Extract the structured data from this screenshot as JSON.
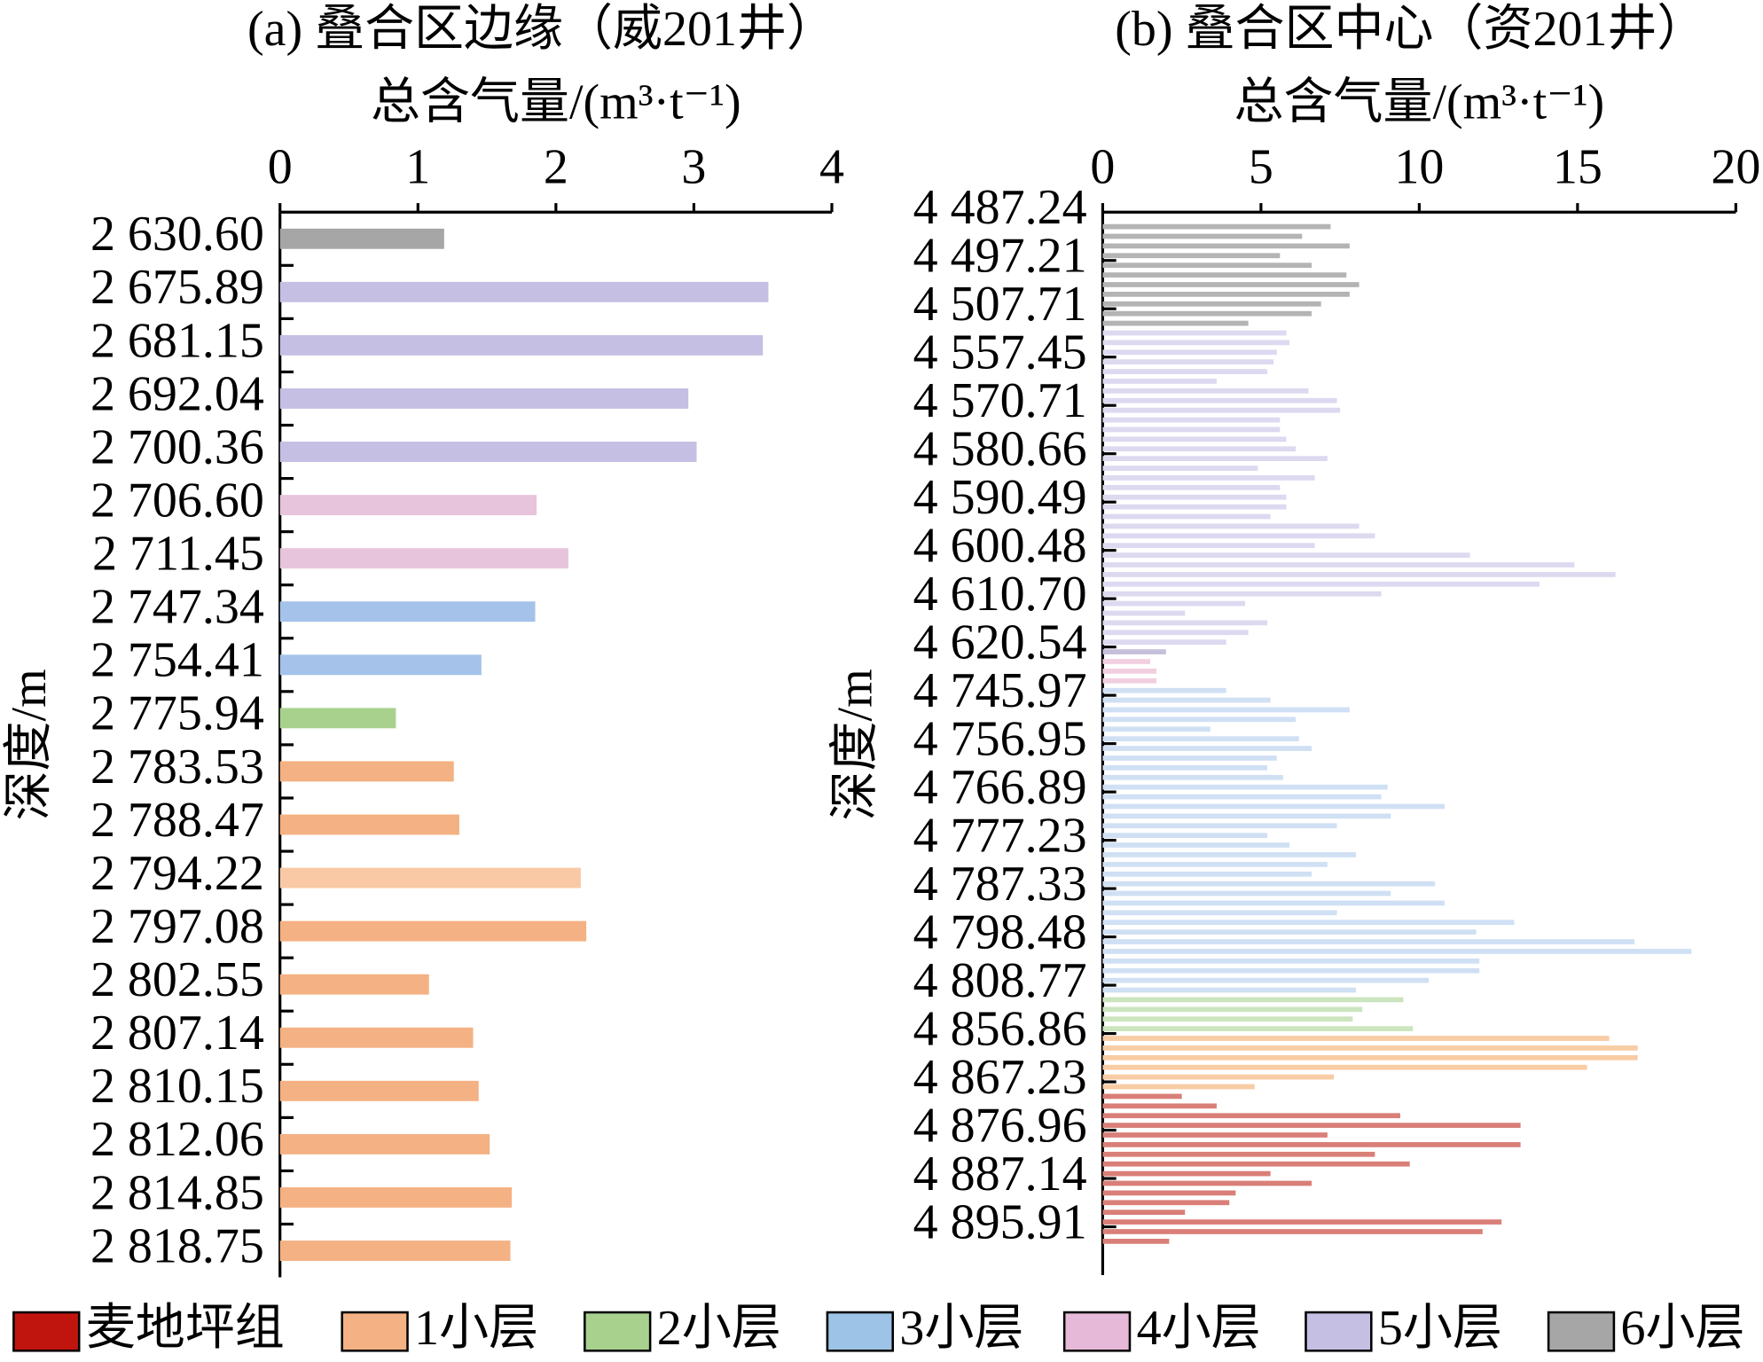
{
  "chart_data": [
    {
      "type": "hbar",
      "title": "(a) 叠合区边缘（威201井）",
      "x_label": "总含气量/(m³·t⁻¹)",
      "y_label": "深度/m",
      "categories": [
        "2 630.60",
        "2 675.89",
        "2 681.15",
        "2 692.04",
        "2 700.36",
        "2 706.60",
        "2 711.45",
        "2 747.34",
        "2 754.41",
        "2 775.94",
        "2 783.53",
        "2 788.47",
        "2 794.22",
        "2 797.08",
        "2 802.55",
        "2 807.14",
        "2 810.15",
        "2 812.06",
        "2 814.85",
        "2 818.75"
      ],
      "values": [
        1.19,
        3.54,
        3.5,
        2.96,
        3.02,
        1.86,
        2.09,
        1.85,
        1.46,
        0.84,
        1.26,
        1.3,
        2.18,
        2.22,
        1.08,
        1.4,
        1.44,
        1.52,
        1.68,
        1.67
      ],
      "colors": [
        "#a6a6a6",
        "#c5bfe3",
        "#c5bfe3",
        "#c5bfe3",
        "#c5bfe3",
        "#e8c3dc",
        "#e8c3dc",
        "#a4c2ea",
        "#a4c2ea",
        "#a9d18e",
        "#f4b183",
        "#f4b183",
        "#f8c9a4",
        "#f4b183",
        "#f4b183",
        "#f4b183",
        "#f4b183",
        "#f4b183",
        "#f4b183",
        "#f4b183"
      ],
      "xlim": [
        0,
        4
      ],
      "xticks": [
        0,
        1,
        2,
        3,
        4
      ]
    },
    {
      "type": "hbar",
      "title": "(b) 叠合区中心（资201井）",
      "x_label": "总含气量/(m³·t⁻¹)",
      "y_label": "深度/m",
      "categories": [
        "4 487.24",
        null,
        null,
        null,
        null,
        "4 497.21",
        null,
        null,
        null,
        null,
        "4 507.71",
        null,
        null,
        null,
        null,
        "4 557.45",
        null,
        null,
        null,
        null,
        "4 570.71",
        null,
        null,
        null,
        null,
        "4 580.66",
        null,
        null,
        null,
        null,
        "4 590.49",
        null,
        null,
        null,
        null,
        "4 600.48",
        null,
        null,
        null,
        null,
        "4 610.70",
        null,
        null,
        null,
        null,
        "4 620.54",
        null,
        null,
        null,
        null,
        "4 745.97",
        null,
        null,
        null,
        null,
        "4 756.95",
        null,
        null,
        null,
        null,
        "4 766.89",
        null,
        null,
        null,
        null,
        "4 777.23",
        null,
        null,
        null,
        null,
        "4 787.33",
        null,
        null,
        null,
        null,
        "4 798.48",
        null,
        null,
        null,
        null,
        "4 808.77",
        null,
        null,
        null,
        null,
        "4 856.86",
        null,
        null,
        null,
        null,
        "4 867.23",
        null,
        null,
        null,
        null,
        "4 876.96",
        null,
        null,
        null,
        null,
        "4 887.14",
        null,
        null,
        null,
        null,
        "4 895.91"
      ],
      "values": [
        7.2,
        6.3,
        7.8,
        5.6,
        6.6,
        7.7,
        8.1,
        7.8,
        6.9,
        6.6,
        4.6,
        5.8,
        5.9,
        5.5,
        5.4,
        5.2,
        3.6,
        6.5,
        7.4,
        7.5,
        5.6,
        5.6,
        5.8,
        6.1,
        7.1,
        4.9,
        6.7,
        5.6,
        5.8,
        5.8,
        5.3,
        8.1,
        8.6,
        6.7,
        11.6,
        14.9,
        16.2,
        13.8,
        8.8,
        4.5,
        2.6,
        5.2,
        4.6,
        3.9,
        2.0,
        1.5,
        1.7,
        1.7,
        3.9,
        5.3,
        7.8,
        6.1,
        3.4,
        6.2,
        6.6,
        5.5,
        5.2,
        5.7,
        9.0,
        8.8,
        10.8,
        9.1,
        7.4,
        5.2,
        5.9,
        8.0,
        7.1,
        6.6,
        10.5,
        9.1,
        10.8,
        7.4,
        13.0,
        11.8,
        16.8,
        18.6,
        11.9,
        11.9,
        10.3,
        8.0,
        9.5,
        8.2,
        7.9,
        9.8,
        16.0,
        16.9,
        16.9,
        15.3,
        7.3,
        4.8,
        2.5,
        3.6,
        9.4,
        13.2,
        7.1,
        13.2,
        8.6,
        9.7,
        5.3,
        6.6,
        4.2,
        4.0,
        2.6,
        12.6,
        12.0,
        2.1
      ],
      "colors": [
        "#b4b4b4",
        "#b4b4b4",
        "#b4b4b4",
        "#b4b4b4",
        "#b4b4b4",
        "#b4b4b4",
        "#b4b4b4",
        "#b4b4b4",
        "#b4b4b4",
        "#b4b4b4",
        "#b4b4b4",
        "#dcd9f0",
        "#dcd9f0",
        "#dcd9f0",
        "#dcd9f0",
        "#dcd9f0",
        "#dcd9f0",
        "#dcd9f0",
        "#dcd9f0",
        "#dcd9f0",
        "#dcd9f0",
        "#dcd9f0",
        "#dcd9f0",
        "#dcd9f0",
        "#dcd9f0",
        "#dcd9f0",
        "#dcd9f0",
        "#dcd9f0",
        "#dcd9f0",
        "#dcd9f0",
        "#dcd9f0",
        "#dcd9f0",
        "#dcd9f0",
        "#dcd9f0",
        "#dcd9f0",
        "#dcd9f0",
        "#dcd9f0",
        "#dcd9f0",
        "#dcd9f0",
        "#dcd9f0",
        "#dcd9f0",
        "#dcd9f0",
        "#dcd9f0",
        "#dcd9f0",
        "#c5bfd9",
        "#f2cfe0",
        "#f2cfe0",
        "#f2cfe0",
        "#d0e0f4",
        "#d0e0f4",
        "#d0e0f4",
        "#d0e0f4",
        "#d0e0f4",
        "#d0e0f4",
        "#d0e0f4",
        "#d0e0f4",
        "#d0e0f4",
        "#d0e0f4",
        "#d0e0f4",
        "#d0e0f4",
        "#d0e0f4",
        "#d0e0f4",
        "#d0e0f4",
        "#d0e0f4",
        "#d0e0f4",
        "#d0e0f4",
        "#d0e0f4",
        "#d0e0f4",
        "#d0e0f4",
        "#d0e0f4",
        "#d0e0f4",
        "#d0e0f4",
        "#d0e0f4",
        "#d0e0f4",
        "#d0e0f4",
        "#d0e0f4",
        "#d0e0f4",
        "#d0e0f4",
        "#d0e0f4",
        "#d0e0f4",
        "#cbe5bf",
        "#cbe5bf",
        "#cbe5bf",
        "#cbe5bf",
        "#f8cca4",
        "#f8cca4",
        "#f8cca4",
        "#f8cca4",
        "#f8cca4",
        "#f8cca4",
        "#d97f78",
        "#d97f78",
        "#d97f78",
        "#d97f78",
        "#d97f78",
        "#d97f78",
        "#d97f78",
        "#d97f78",
        "#d97f78",
        "#d97f78",
        "#d97f78",
        "#d97f78",
        "#d97f78",
        "#d97f78",
        "#d97f78",
        "#d97f78"
      ],
      "xlim": [
        0,
        20
      ],
      "xticks": [
        0,
        5,
        10,
        15,
        20
      ]
    }
  ],
  "legend": [
    {
      "name": "麦地坪组",
      "color": "#c0150f"
    },
    {
      "name": "1小层",
      "color": "#f4b183"
    },
    {
      "name": "2小层",
      "color": "#a9d18e"
    },
    {
      "name": "3小层",
      "color": "#9dc3e6"
    },
    {
      "name": "4小层",
      "color": "#e6b9d8"
    },
    {
      "name": "5小层",
      "color": "#c5bfe3"
    },
    {
      "name": "6小层",
      "color": "#a6a6a6"
    }
  ]
}
